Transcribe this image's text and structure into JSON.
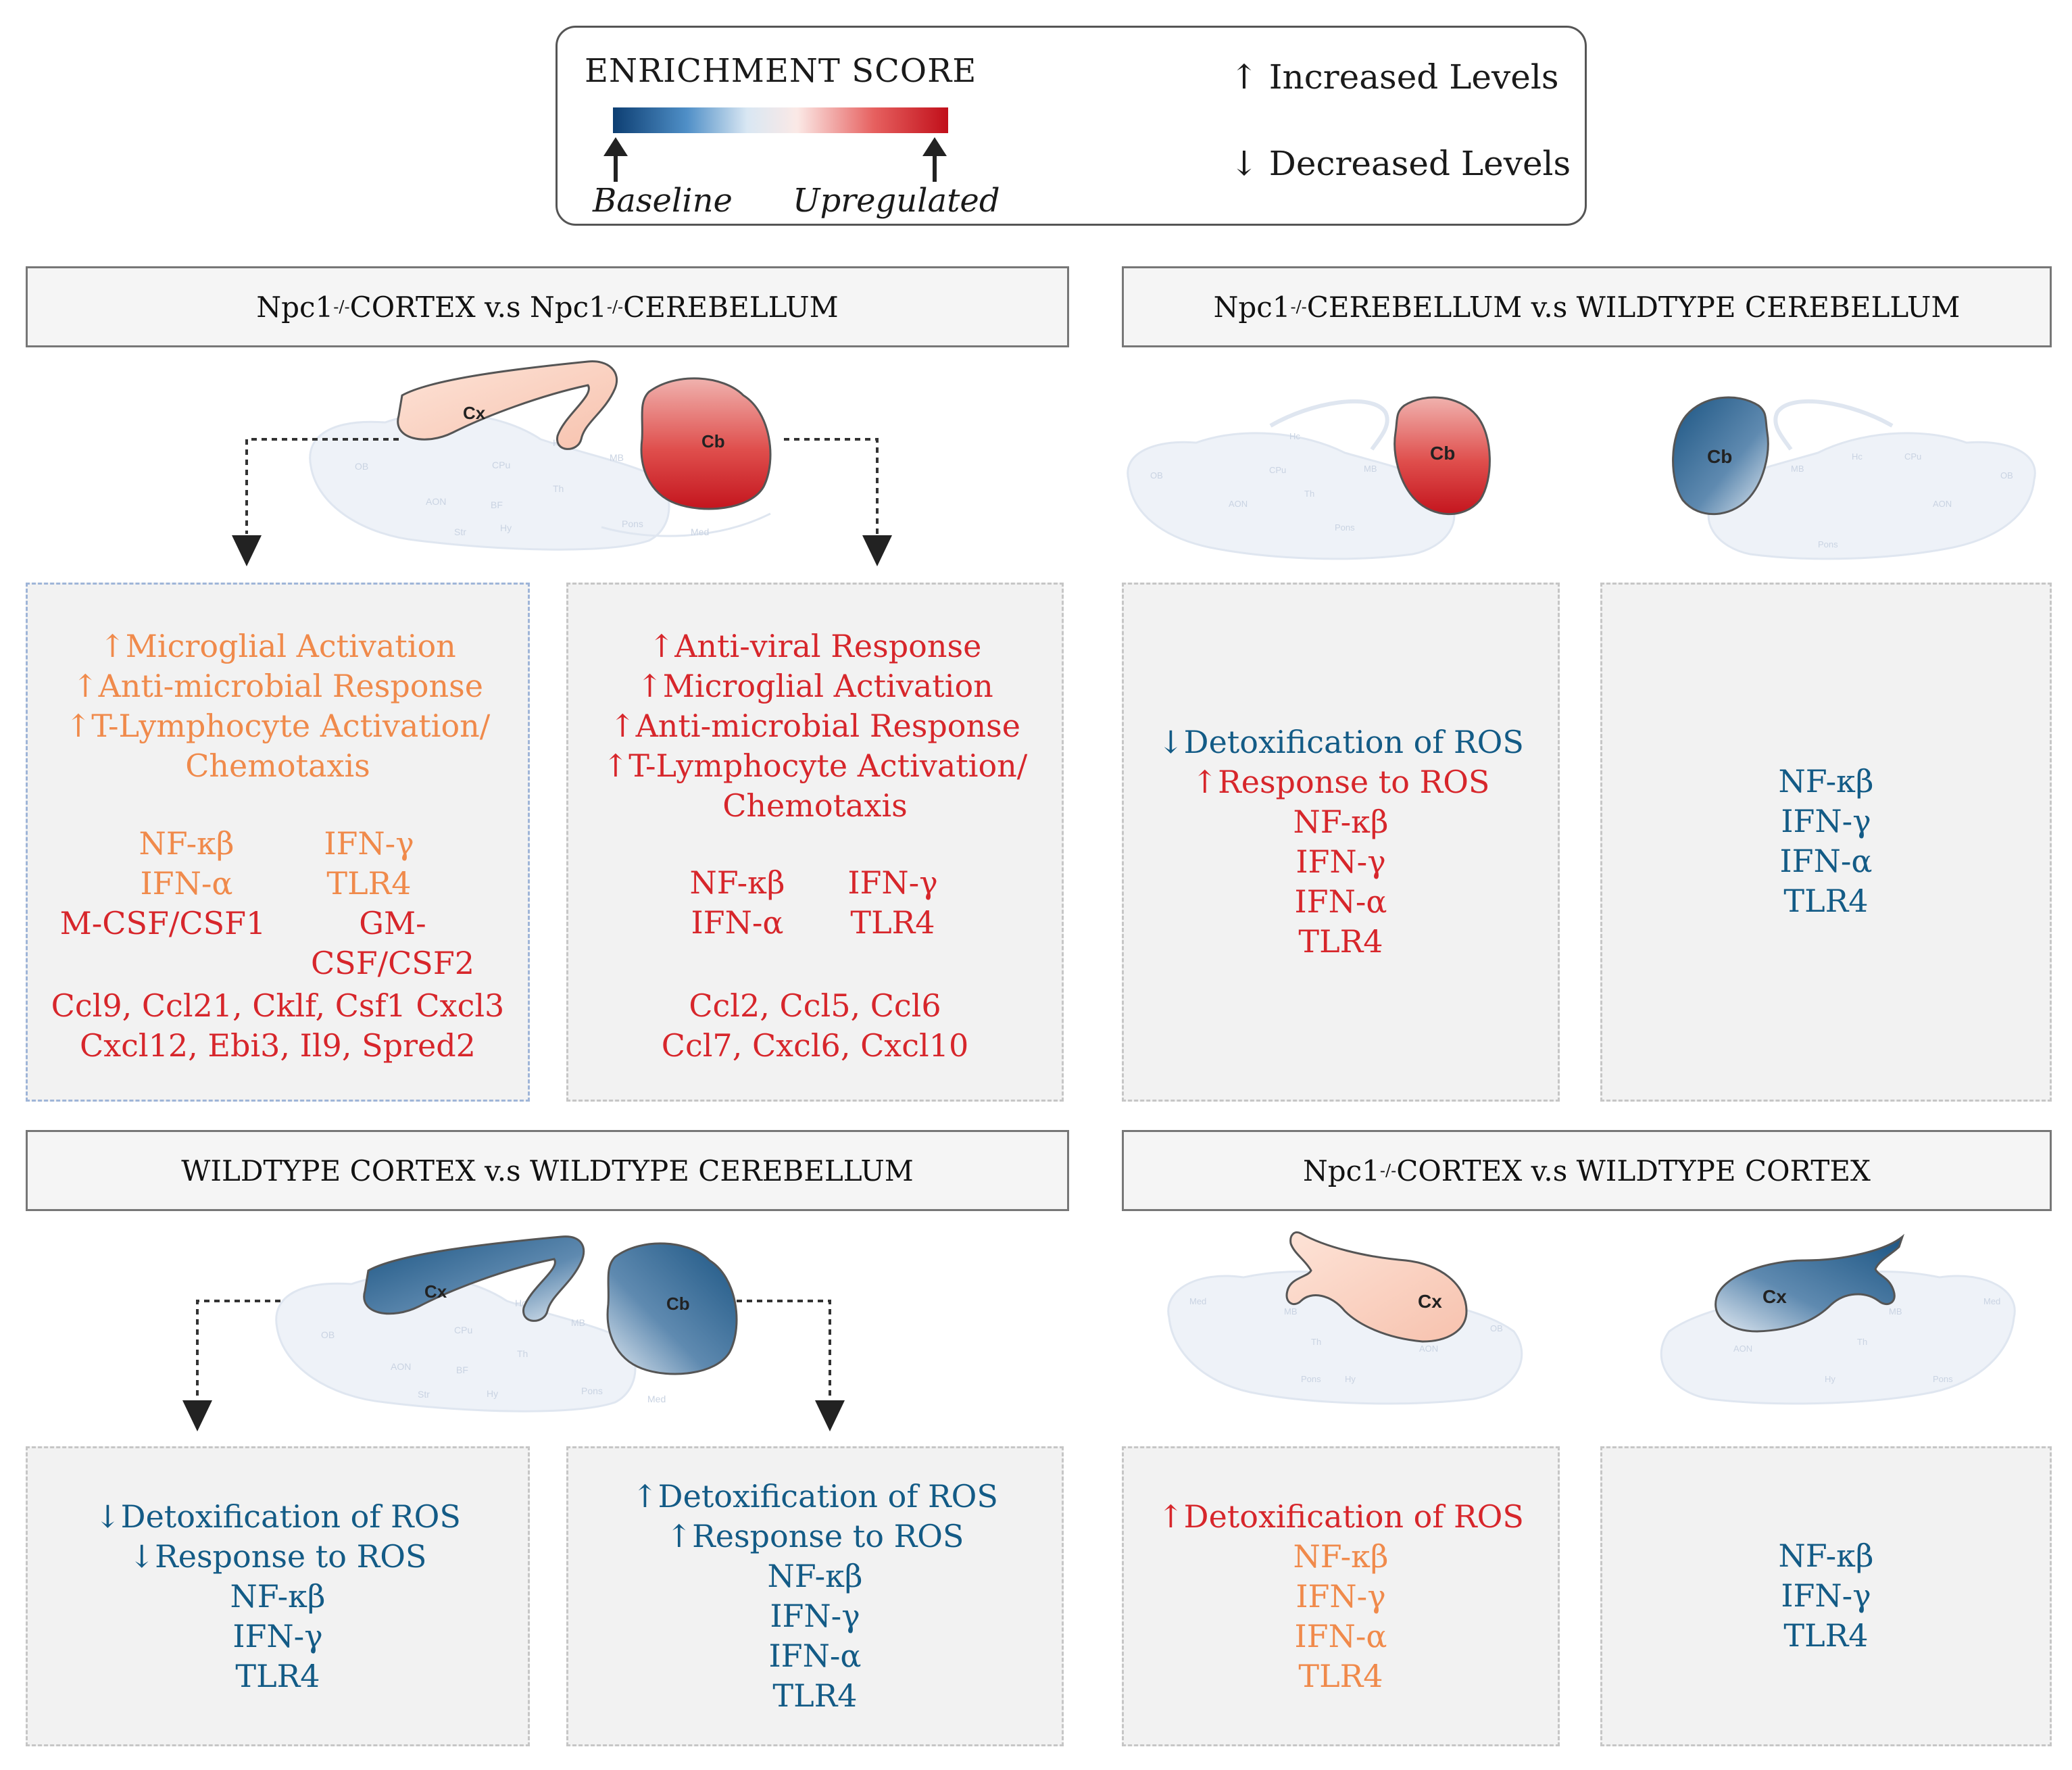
{
  "legend": {
    "title": "ENRICHMENT SCORE",
    "baseline": "Baseline",
    "upregulated": "Upregulated",
    "increased": "↑ Increased Levels",
    "decreased": "↓ Decreased Levels"
  },
  "colors": {
    "orange": "#f08a4b",
    "red": "#d7262b",
    "blue": "#135b86",
    "gradient_low": "#0d3e72",
    "gradient_high": "#c10f1a"
  },
  "headers": {
    "top_left": {
      "pre": "Npc1",
      "sup": "-/-",
      "mid": " CORTEX v.s Npc1",
      "sup2": "-/-",
      "post": " CEREBELLUM"
    },
    "top_right": {
      "pre": "Npc1",
      "sup": "-/-",
      "post": " CEREBELLUM v.s WILDTYPE CEREBELLUM"
    },
    "bottom_left": {
      "text": "WILDTYPE CORTEX v.s WILDTYPE CEREBELLUM"
    },
    "bottom_right": {
      "pre": "Npc1",
      "sup": "-/-",
      "post": " CORTEX v.s WILDTYPE CORTEX"
    }
  },
  "regions": {
    "cortex": "Cx",
    "cerebellum": "Cb"
  },
  "brain_labels": [
    "OB",
    "AON",
    "BF",
    "Hy",
    "CPu",
    "Hc",
    "Th",
    "MB",
    "Pons",
    "Med",
    "Str"
  ],
  "panels": {
    "tl_cortex": {
      "processes": [
        "↑Microglial Activation",
        "↑Anti-microbial Response",
        "↑T-Lymphocyte Activation/",
        "Chemotaxis"
      ],
      "pair1": [
        "NF-κβ",
        "IFN-γ"
      ],
      "pair2": [
        "IFN-α",
        "TLR4"
      ],
      "pair3": [
        "M-CSF/CSF1",
        "GM-CSF/CSF2"
      ],
      "genes": [
        "Ccl9, Ccl21, Cklf, Csf1 Cxcl3",
        "Cxcl12, Ebi3, Il9, Spred2"
      ]
    },
    "tl_cerebellum": {
      "processes": [
        "↑Anti-viral Response",
        "↑Microglial Activation",
        "↑Anti-microbial Response",
        "↑T-Lymphocyte Activation/",
        "Chemotaxis"
      ],
      "pair1": [
        "NF-κβ",
        "IFN-γ"
      ],
      "pair2": [
        "IFN-α",
        "TLR4"
      ],
      "genes": [
        "Ccl2, Ccl5, Ccl6",
        "Ccl7, Cxcl6, Cxcl10"
      ]
    },
    "tr_npc": {
      "line1": "↓Detoxification of ROS",
      "line2": "↑Response to ROS",
      "markers": [
        "NF-κβ",
        "IFN-γ",
        "IFN-α",
        "TLR4"
      ]
    },
    "tr_wt": {
      "markers": [
        "NF-κβ",
        "IFN-γ",
        "IFN-α",
        "TLR4"
      ]
    },
    "bl_cortex": {
      "line1": "↓Detoxification of ROS",
      "line2": "↓Response to ROS",
      "markers": [
        "NF-κβ",
        "IFN-γ",
        "TLR4"
      ]
    },
    "bl_cerebellum": {
      "line1": "↑Detoxification of ROS",
      "line2": "↑Response to ROS",
      "markers": [
        "NF-κβ",
        "IFN-γ",
        "IFN-α",
        "TLR4"
      ]
    },
    "br_npc": {
      "line1": "↑Detoxification of ROS",
      "markers": [
        "NF-κβ",
        "IFN-γ",
        "IFN-α",
        "TLR4"
      ]
    },
    "br_wt": {
      "markers": [
        "NF-κβ",
        "IFN-γ",
        "TLR4"
      ]
    }
  }
}
